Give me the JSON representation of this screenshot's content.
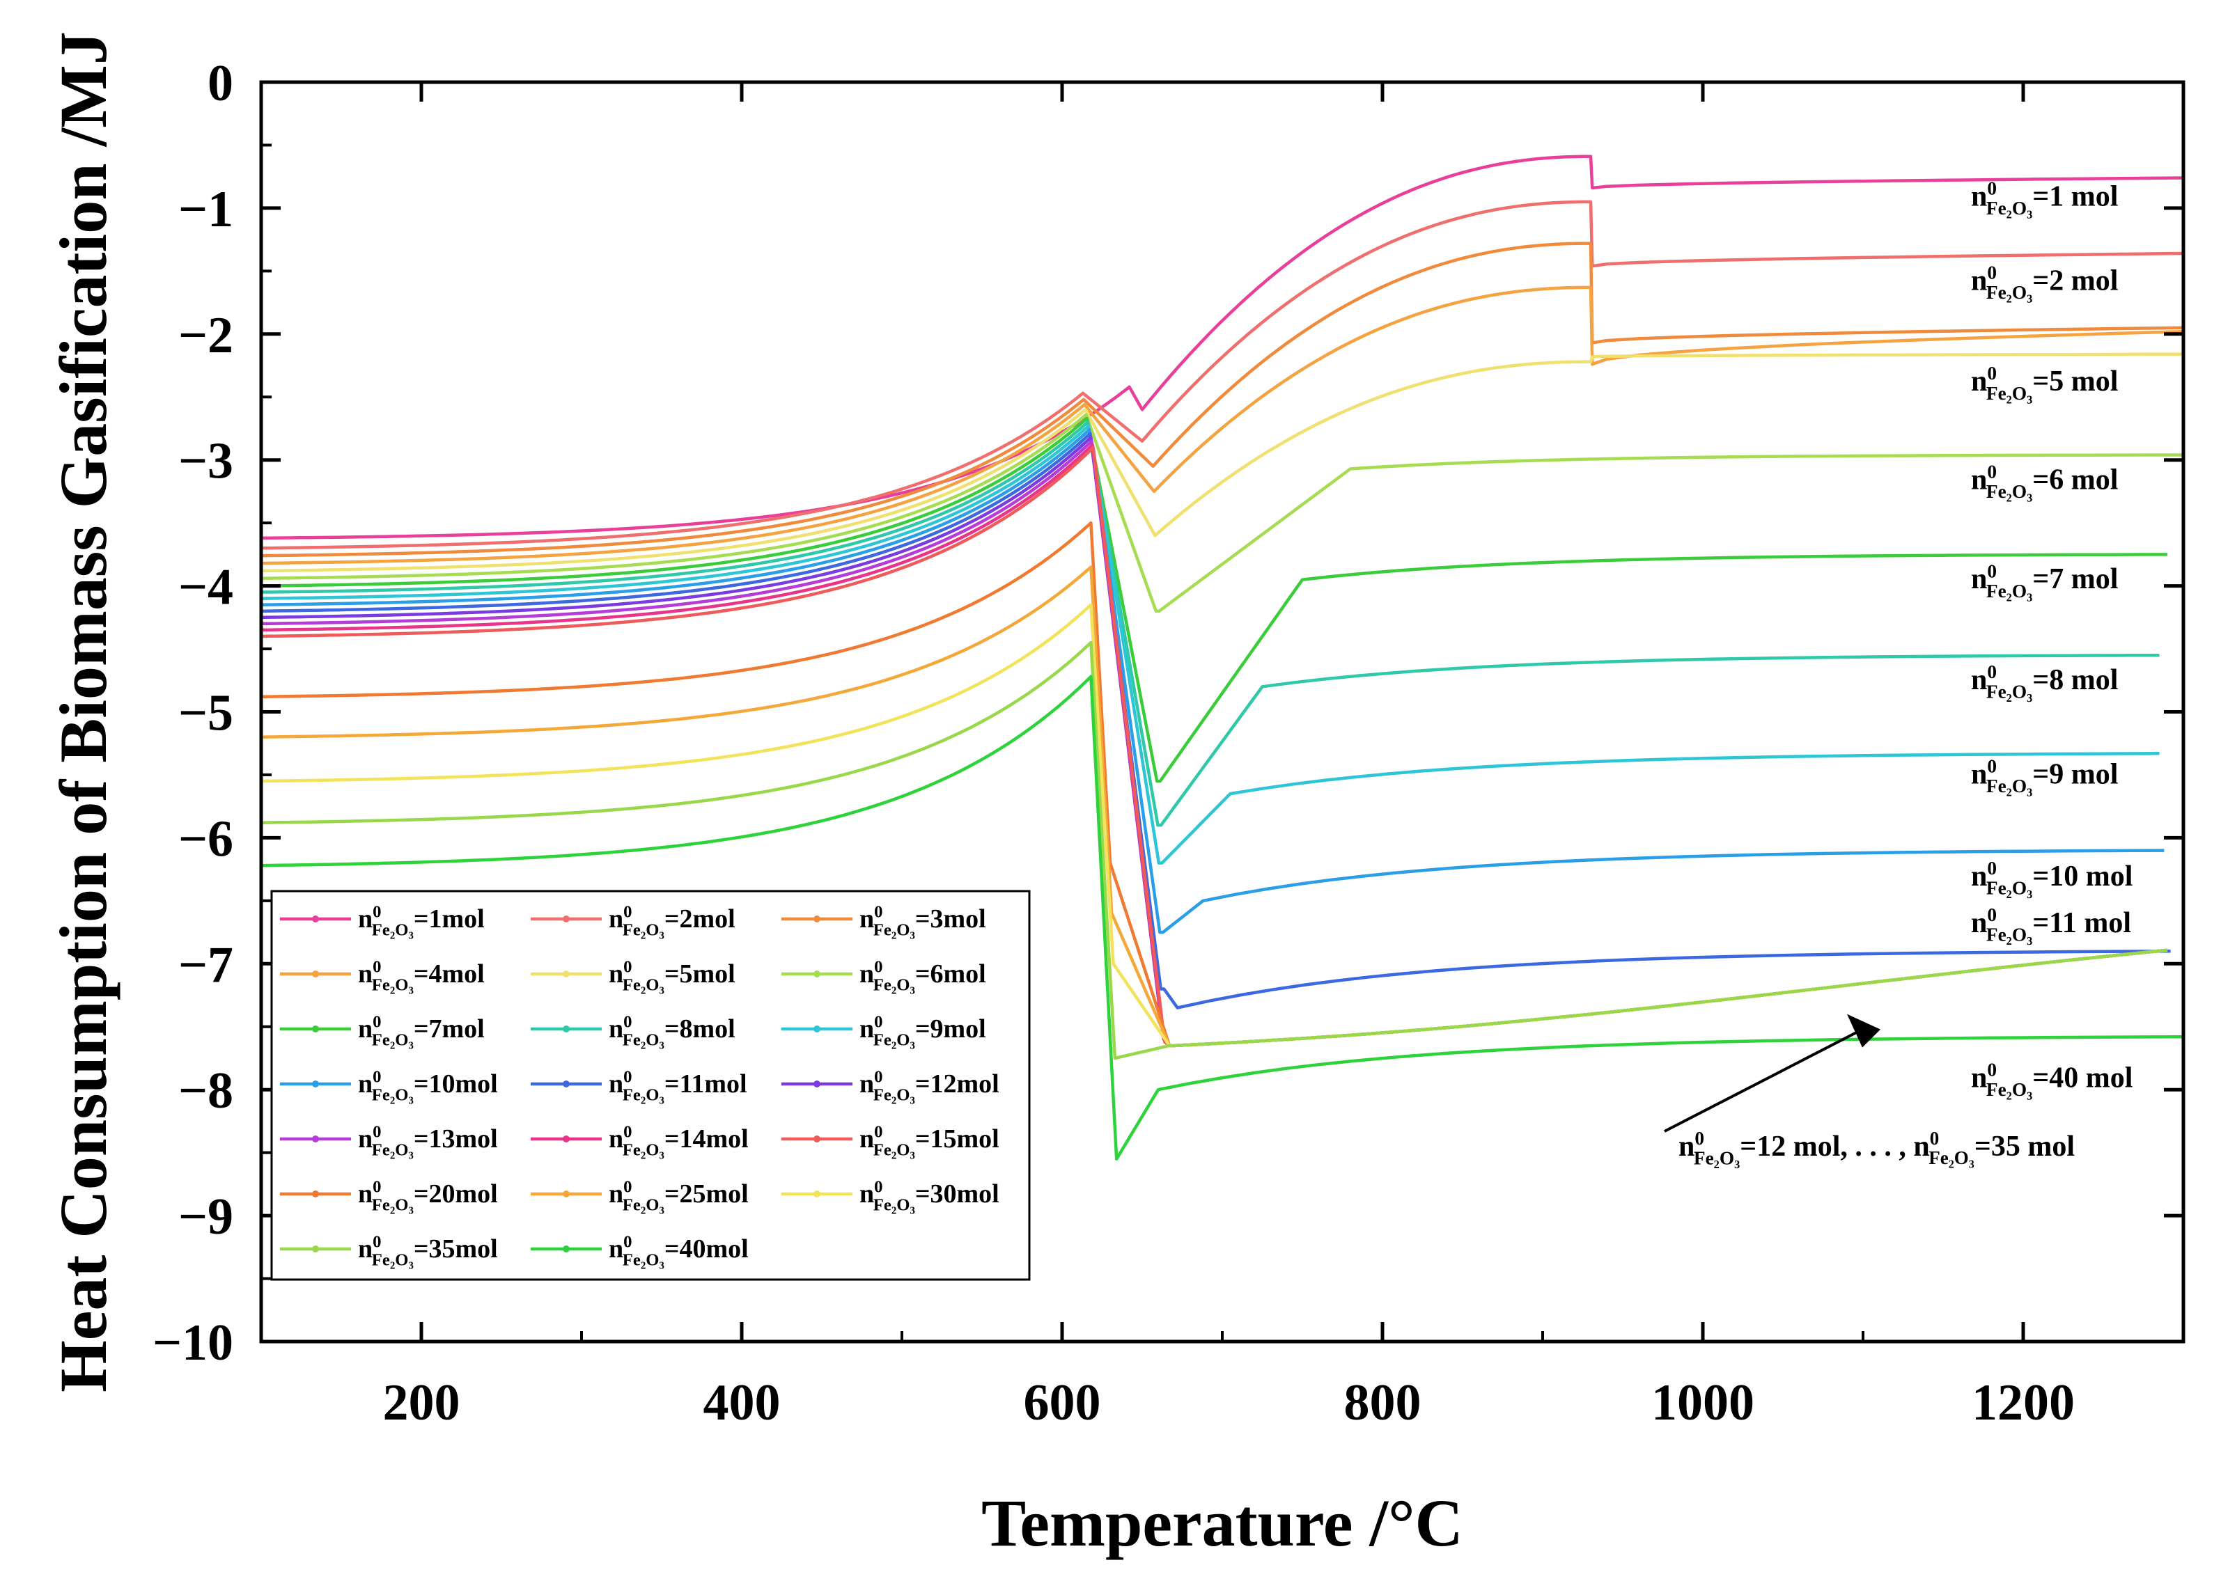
{
  "chart_data": {
    "type": "line",
    "title": "",
    "xlabel": "Temperature /°C",
    "ylabel": "Heat Consumption of Biomass Gasification /MJ",
    "xlim": [
      100,
      1300
    ],
    "ylim": [
      -10,
      0
    ],
    "xticks": [
      200,
      400,
      600,
      800,
      1000,
      1200
    ],
    "xtick_labels": [
      "200",
      "400",
      "600",
      "800",
      "1000",
      "1200"
    ],
    "yticks": [
      0,
      -1,
      -2,
      -3,
      -4,
      -5,
      -6,
      -7,
      -8,
      -9,
      -10
    ],
    "ytick_labels": [
      "0",
      "−1",
      "−2",
      "−3",
      "−4",
      "−5",
      "−6",
      "−7",
      "−8",
      "−9",
      "−10"
    ],
    "grid": false,
    "legend_position": "bottom-left",
    "series": [
      {
        "name": "n⁰Fe₂O₃=1mol",
        "legend_base": "=1mol",
        "color": "#e8409a",
        "y_low": -3.62,
        "y_peak": -2.42,
        "y_drop": -2.6,
        "x_mid": 790,
        "y_top": -0.59,
        "y_jump": -0.84,
        "y_end": -0.76
      },
      {
        "name": "n⁰Fe₂O₃=2mol",
        "legend_base": "=2mol",
        "color": "#ef6f6f",
        "y_low": -3.7,
        "y_peak": -2.47,
        "y_drop": -2.85,
        "x_mid": 800,
        "y_top": -0.95,
        "y_jump": -1.46,
        "y_end": -1.36
      },
      {
        "name": "n⁰Fe₂O₃=3mol",
        "legend_base": "=3mol",
        "color": "#f08a3c",
        "y_low": -3.76,
        "y_peak": -2.52,
        "y_drop": -3.05,
        "x_mid": 810,
        "y_top": -1.28,
        "y_jump": -2.07,
        "y_end": -1.95
      },
      {
        "name": "n⁰Fe₂O₃=4mol",
        "legend_base": "=4mol",
        "color": "#f5a340",
        "y_low": -3.82,
        "y_peak": -2.56,
        "y_drop": -3.25,
        "x_mid": 820,
        "y_top": -1.63,
        "y_jump": -2.24,
        "y_end": -1.98
      },
      {
        "name": "n⁰Fe₂O₃=5mol",
        "legend_base": "=5mol",
        "color": "#f0e070",
        "y_low": -3.88,
        "y_peak": -2.6,
        "y_drop": -3.6,
        "x_mid": 845,
        "y_top": -2.22,
        "y_jump": -2.18,
        "y_end": -2.16
      },
      {
        "name": "n⁰Fe₂O₃=6mol",
        "legend_base": "=6mol",
        "color": "#a5dc52",
        "y_low": -3.94,
        "y_peak": -2.64,
        "y_drop": -4.2,
        "x_mid": 780,
        "y_top": -3.07,
        "y_jump": -3.02,
        "y_end": -2.96
      },
      {
        "name": "n⁰Fe₂O₃=7mol",
        "legend_base": "=7mol",
        "color": "#3bcc3b",
        "y_low": -4.0,
        "y_peak": -2.67,
        "y_drop": -5.55,
        "x_mid": 750,
        "y_top": -3.95,
        "y_jump": -3.85,
        "y_end": -3.75
      },
      {
        "name": "n⁰Fe₂O₃=8mol",
        "legend_base": "=8mol",
        "color": "#2fc8a8",
        "y_low": -4.05,
        "y_peak": -2.7,
        "y_drop": -5.9,
        "x_mid": 725,
        "y_top": -4.8,
        "y_jump": -4.65,
        "y_end": -4.55
      },
      {
        "name": "n⁰Fe₂O₃=9mol",
        "legend_base": "=9mol",
        "color": "#2ec6d6",
        "y_low": -4.1,
        "y_peak": -2.73,
        "y_drop": -6.2,
        "x_mid": 705,
        "y_top": -5.65,
        "y_jump": -5.45,
        "y_end": -5.33
      },
      {
        "name": "n⁰Fe₂O₃=10mol",
        "legend_base": "=10mol",
        "color": "#2a9ee6",
        "y_low": -4.15,
        "y_peak": -2.76,
        "y_drop": -6.75,
        "x_mid": 688,
        "y_top": -6.5,
        "y_jump": -6.2,
        "y_end": -6.1
      },
      {
        "name": "n⁰Fe₂O₃=11mol",
        "legend_base": "=11mol",
        "color": "#3c68e0",
        "y_low": -4.2,
        "y_peak": -2.79,
        "y_drop": -7.2,
        "x_mid": 672,
        "y_top": -7.35,
        "y_jump": -7.0,
        "y_end": -6.9
      },
      {
        "name": "n⁰Fe₂O₃=12mol",
        "legend_base": "=12mol",
        "color": "#7a3ce0",
        "y_low": -4.25,
        "y_peak": -2.82,
        "y_drop": -7.5,
        "x_mid": 665,
        "y_top": -7.65,
        "y_jump": -7.6,
        "y_end": -6.88
      },
      {
        "name": "n⁰Fe₂O₃=13mol",
        "legend_base": "=13mol",
        "color": "#b63cd8",
        "y_low": -4.3,
        "y_peak": -2.85,
        "y_drop": -7.55,
        "x_mid": 665,
        "y_top": -7.65,
        "y_jump": -7.6,
        "y_end": -6.88
      },
      {
        "name": "n⁰Fe₂O₃=14mol",
        "legend_base": "=14mol",
        "color": "#e8358a",
        "y_low": -4.35,
        "y_peak": -2.88,
        "y_drop": -7.6,
        "x_mid": 665,
        "y_top": -7.65,
        "y_jump": -7.6,
        "y_end": -6.88
      },
      {
        "name": "n⁰Fe₂O₃=15mol",
        "legend_base": "=15mol",
        "color": "#ef5a5a",
        "y_low": -4.4,
        "y_peak": -2.9,
        "y_drop": -7.62,
        "x_mid": 665,
        "y_top": -7.65,
        "y_jump": -7.6,
        "y_end": -6.88
      },
      {
        "name": "n⁰Fe₂O₃=20mol",
        "legend_base": "=20mol",
        "color": "#f07a32",
        "y_low": -4.88,
        "y_peak": -3.5,
        "y_drop": -6.2,
        "x_mid": 665,
        "y_top": -7.65,
        "y_jump": -7.6,
        "y_end": -6.88
      },
      {
        "name": "n⁰Fe₂O₃=25mol",
        "legend_base": "=25mol",
        "color": "#f5a83a",
        "y_low": -5.2,
        "y_peak": -3.85,
        "y_drop": -6.6,
        "x_mid": 665,
        "y_top": -7.65,
        "y_jump": -7.6,
        "y_end": -6.88
      },
      {
        "name": "n⁰Fe₂O₃=30mol",
        "legend_base": "=30mol",
        "color": "#f2e35a",
        "y_low": -5.55,
        "y_peak": -4.15,
        "y_drop": -7.0,
        "x_mid": 665,
        "y_top": -7.65,
        "y_jump": -7.6,
        "y_end": -6.88
      },
      {
        "name": "n⁰Fe₂O₃=35mol",
        "legend_base": "=35mol",
        "color": "#98d84a",
        "y_low": -5.88,
        "y_peak": -4.45,
        "y_drop": -7.75,
        "x_mid": 665,
        "y_top": -7.65,
        "y_jump": -7.6,
        "y_end": -6.88
      },
      {
        "name": "n⁰Fe₂O₃=40mol",
        "legend_base": "=40mol",
        "color": "#2ed23a",
        "y_low": -6.22,
        "y_peak": -4.72,
        "y_drop": -8.55,
        "x_mid": 660,
        "y_top": -8.0,
        "y_jump": -7.85,
        "y_end": -7.58
      }
    ],
    "annotations": [
      {
        "label": "n⁰Fe₂O₃=1 mol",
        "base": "=1 mol",
        "y": -0.98
      },
      {
        "label": "n⁰Fe₂O₃=2 mol",
        "base": "=2 mol",
        "y": -1.65
      },
      {
        "label": "n⁰Fe₂O₃=5 mol",
        "base": "=5 mol",
        "y": -2.45
      },
      {
        "label": "n⁰Fe₂O₃=6 mol",
        "base": "=6 mol",
        "y": -3.23
      },
      {
        "label": "n⁰Fe₂O₃=7 mol",
        "base": "=7 mol",
        "y": -4.02
      },
      {
        "label": "n⁰Fe₂O₃=8 mol",
        "base": "=8 mol",
        "y": -4.82
      },
      {
        "label": "n⁰Fe₂O₃=9 mol",
        "base": "=9 mol",
        "y": -5.57
      },
      {
        "label": "n⁰Fe₂O₃=10 mol",
        "base": "=10 mol",
        "y": -6.38
      },
      {
        "label": "n⁰Fe₂O₃=11 mol",
        "base": "=11 mol",
        "y": -6.75
      },
      {
        "label": "n⁰Fe₂O₃=40 mol",
        "base": "=40 mol",
        "y": -7.98
      }
    ],
    "arrow_annotation": {
      "label": "n⁰Fe₂O₃=12 mol, . . . , n⁰Fe₂O₃=35 mol",
      "part1": "=12 mol, . . . , ",
      "part2": "=35 mol",
      "points_to_x": 1090,
      "points_to_y": -7.4
    },
    "symbol": {
      "n": "n",
      "sup": "0",
      "sub": "Fe₂O₃"
    }
  }
}
